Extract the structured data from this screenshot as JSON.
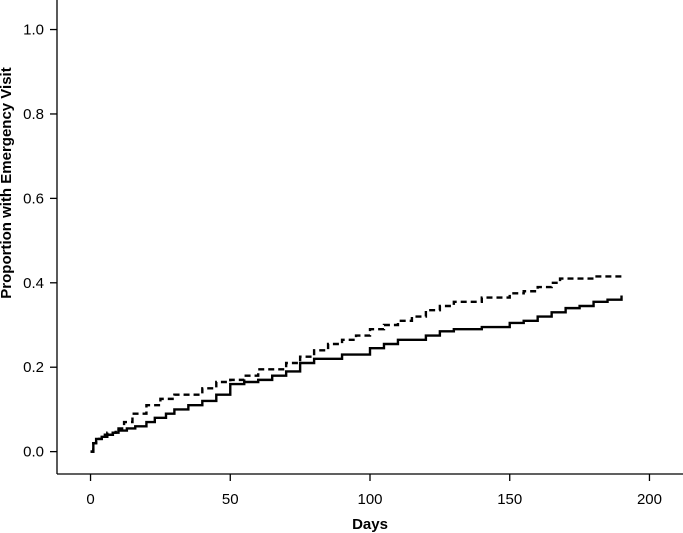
{
  "chart_data": {
    "type": "line",
    "step": true,
    "title": "",
    "xlabel": "Days",
    "ylabel": "Proportion with Emergency Visit",
    "xlim": [
      -12,
      212
    ],
    "ylim": [
      -0.053,
      1.07
    ],
    "xticks": [
      0,
      50,
      100,
      150,
      200
    ],
    "yticks": [
      0.0,
      0.2,
      0.4,
      0.6,
      0.8,
      1.0
    ],
    "ytick_labels": [
      "0.0",
      "0.2",
      "0.4",
      "0.6",
      "0.8",
      "1.0"
    ],
    "grid": false,
    "legend": "none",
    "series": [
      {
        "style": "solid",
        "color": "#000000",
        "x": [
          0,
          1,
          2,
          4,
          6,
          8,
          10,
          13,
          16,
          20,
          23,
          27,
          30,
          35,
          40,
          45,
          50,
          55,
          60,
          65,
          70,
          75,
          80,
          90,
          100,
          105,
          110,
          120,
          125,
          130,
          140,
          150,
          155,
          160,
          165,
          170,
          175,
          180,
          185,
          190
        ],
        "y": [
          0.0,
          0.02,
          0.03,
          0.035,
          0.04,
          0.045,
          0.05,
          0.055,
          0.06,
          0.07,
          0.08,
          0.09,
          0.1,
          0.11,
          0.12,
          0.135,
          0.16,
          0.165,
          0.17,
          0.18,
          0.19,
          0.21,
          0.22,
          0.23,
          0.245,
          0.255,
          0.265,
          0.275,
          0.285,
          0.29,
          0.295,
          0.305,
          0.31,
          0.32,
          0.33,
          0.34,
          0.345,
          0.355,
          0.36,
          0.37
        ]
      },
      {
        "style": "dashed",
        "color": "#000000",
        "x": [
          0,
          1,
          2,
          4,
          6,
          9,
          12,
          15,
          20,
          25,
          30,
          40,
          45,
          50,
          55,
          60,
          70,
          75,
          80,
          85,
          90,
          95,
          100,
          105,
          110,
          115,
          120,
          125,
          130,
          140,
          150,
          155,
          160,
          165,
          168,
          180,
          190
        ],
        "y": [
          0.0,
          0.02,
          0.03,
          0.04,
          0.045,
          0.055,
          0.07,
          0.09,
          0.11,
          0.125,
          0.135,
          0.15,
          0.165,
          0.17,
          0.18,
          0.195,
          0.21,
          0.225,
          0.24,
          0.255,
          0.265,
          0.275,
          0.29,
          0.3,
          0.31,
          0.32,
          0.335,
          0.345,
          0.355,
          0.365,
          0.375,
          0.38,
          0.39,
          0.4,
          0.41,
          0.415,
          0.42
        ]
      }
    ]
  }
}
